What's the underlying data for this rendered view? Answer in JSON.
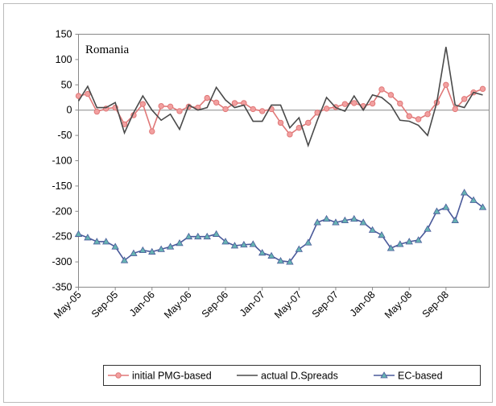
{
  "chart_data": {
    "type": "line",
    "annotation": "Romania",
    "categories": [
      "May-05",
      null,
      null,
      null,
      "Sep-05",
      null,
      null,
      null,
      "Jan-06",
      null,
      null,
      null,
      "May-06",
      null,
      null,
      null,
      "Sep-06",
      null,
      null,
      null,
      "Jan-07",
      null,
      null,
      null,
      "May-07",
      null,
      null,
      null,
      "Sep-07",
      null,
      null,
      null,
      "Jan-08",
      null,
      null,
      null,
      "May-08",
      null,
      null,
      null,
      "Sep-08",
      null,
      null,
      null,
      null
    ],
    "series": [
      {
        "name": "initial PMG-based",
        "color": "#e07878",
        "marker": "circle",
        "marker_color": "#f2a0a0",
        "values": [
          28,
          32,
          -3,
          3,
          5,
          -28,
          -10,
          12,
          -42,
          8,
          7,
          -2,
          7,
          5,
          24,
          15,
          2,
          14,
          14,
          2,
          -2,
          2,
          -25,
          -48,
          -35,
          -25,
          -5,
          3,
          6,
          12,
          14,
          8,
          13,
          41,
          30,
          13,
          -12,
          -18,
          -8,
          15,
          50,
          2,
          22,
          35,
          42
        ]
      },
      {
        "name": "actual D.Spreads",
        "color": "#4a4a4a",
        "marker": "none",
        "values": [
          18,
          47,
          5,
          5,
          15,
          -45,
          -5,
          28,
          0,
          -20,
          -8,
          -38,
          10,
          0,
          5,
          45,
          20,
          5,
          10,
          -22,
          -22,
          10,
          10,
          -35,
          -15,
          -70,
          -20,
          25,
          5,
          -2,
          28,
          0,
          30,
          25,
          10,
          -20,
          -22,
          -30,
          -50,
          15,
          125,
          10,
          5,
          35,
          30
        ]
      },
      {
        "name": "EC-based",
        "color": "#4a5a9a",
        "marker": "triangle",
        "marker_color": "#66b3b3",
        "values": [
          -245,
          -252,
          -260,
          -260,
          -270,
          -297,
          -283,
          -277,
          -280,
          -275,
          -270,
          -263,
          -250,
          -250,
          -250,
          -245,
          -260,
          -268,
          -266,
          -265,
          -282,
          -288,
          -298,
          -300,
          -275,
          -262,
          -222,
          -215,
          -222,
          -218,
          -215,
          -222,
          -237,
          -247,
          -273,
          -265,
          -260,
          -257,
          -235,
          -200,
          -192,
          -218,
          -163,
          -178,
          -192
        ]
      }
    ],
    "ylim": [
      -350,
      150
    ],
    "yticks": [
      150,
      100,
      50,
      0,
      -50,
      -100,
      -150,
      -200,
      -250,
      -300,
      -350
    ],
    "legend": "bottom"
  }
}
